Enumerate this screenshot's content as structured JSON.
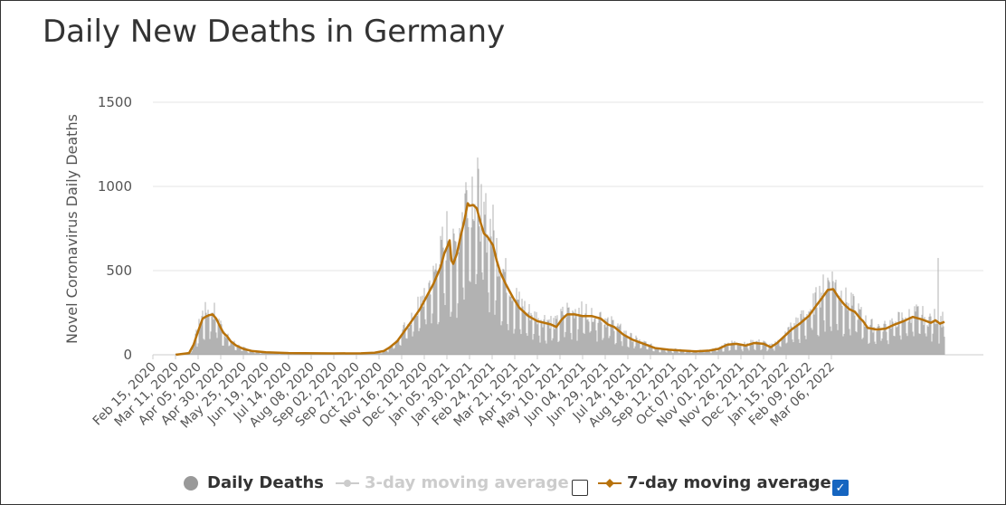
{
  "title": "Daily New Deaths in Germany",
  "chart_data": {
    "type": "bar",
    "title": "Daily New Deaths in Germany",
    "ylabel": "Novel Coronavirus Daily Deaths",
    "xlabel": "",
    "ylim": [
      0,
      1500
    ],
    "yticks": [
      0,
      500,
      1000,
      1500
    ],
    "grid": true,
    "x_tick_labels": [
      "Feb 15, 2020",
      "Mar 11, 2020",
      "Apr 05, 2020",
      "Apr 30, 2020",
      "May 25, 2020",
      "Jun 19, 2020",
      "Jul 14, 2020",
      "Aug 08, 2020",
      "Sep 02, 2020",
      "Sep 27, 2020",
      "Oct 22, 2020",
      "Nov 16, 2020",
      "Dec 11, 2020",
      "Jan 05, 2021",
      "Jan 30, 2021",
      "Feb 24, 2021",
      "Mar 21, 2021",
      "Apr 15, 2021",
      "May 10, 2021",
      "Jun 04, 2021",
      "Jun 29, 2021",
      "Jul 24, 2021",
      "Aug 18, 2021",
      "Sep 12, 2021",
      "Oct 07, 2021",
      "Nov 01, 2021",
      "Nov 26, 2021",
      "Dec 21, 2021",
      "Jan 15, 2022",
      "Feb 09, 2022",
      "Mar 06, 2022"
    ],
    "days_range": [
      0,
      785
    ],
    "series": [
      {
        "name": "7-day moving average",
        "color": "#b8720a",
        "points": [
          [
            25,
            0
          ],
          [
            40,
            10
          ],
          [
            45,
            60
          ],
          [
            50,
            140
          ],
          [
            55,
            215
          ],
          [
            58,
            225
          ],
          [
            62,
            235
          ],
          [
            66,
            240
          ],
          [
            70,
            215
          ],
          [
            74,
            170
          ],
          [
            78,
            130
          ],
          [
            82,
            110
          ],
          [
            86,
            80
          ],
          [
            92,
            55
          ],
          [
            100,
            35
          ],
          [
            110,
            22
          ],
          [
            125,
            15
          ],
          [
            150,
            10
          ],
          [
            200,
            8
          ],
          [
            230,
            9
          ],
          [
            245,
            12
          ],
          [
            255,
            22
          ],
          [
            262,
            45
          ],
          [
            270,
            80
          ],
          [
            278,
            140
          ],
          [
            286,
            200
          ],
          [
            295,
            270
          ],
          [
            302,
            340
          ],
          [
            310,
            420
          ],
          [
            318,
            520
          ],
          [
            322,
            600
          ],
          [
            326,
            650
          ],
          [
            328,
            680
          ],
          [
            330,
            560
          ],
          [
            332,
            540
          ],
          [
            336,
            600
          ],
          [
            340,
            700
          ],
          [
            344,
            790
          ],
          [
            348,
            900
          ],
          [
            350,
            885
          ],
          [
            354,
            890
          ],
          [
            358,
            870
          ],
          [
            362,
            790
          ],
          [
            366,
            720
          ],
          [
            370,
            700
          ],
          [
            376,
            650
          ],
          [
            380,
            560
          ],
          [
            384,
            490
          ],
          [
            390,
            420
          ],
          [
            398,
            340
          ],
          [
            405,
            280
          ],
          [
            415,
            230
          ],
          [
            425,
            200
          ],
          [
            440,
            180
          ],
          [
            446,
            165
          ],
          [
            452,
            210
          ],
          [
            458,
            240
          ],
          [
            466,
            240
          ],
          [
            475,
            230
          ],
          [
            485,
            230
          ],
          [
            495,
            215
          ],
          [
            503,
            180
          ],
          [
            510,
            165
          ],
          [
            520,
            120
          ],
          [
            530,
            90
          ],
          [
            545,
            60
          ],
          [
            555,
            40
          ],
          [
            570,
            30
          ],
          [
            585,
            25
          ],
          [
            600,
            20
          ],
          [
            615,
            25
          ],
          [
            625,
            35
          ],
          [
            635,
            60
          ],
          [
            645,
            65
          ],
          [
            655,
            55
          ],
          [
            665,
            70
          ],
          [
            675,
            65
          ],
          [
            683,
            45
          ],
          [
            690,
            70
          ],
          [
            698,
            110
          ],
          [
            706,
            150
          ],
          [
            715,
            185
          ],
          [
            725,
            230
          ],
          [
            733,
            290
          ],
          [
            740,
            340
          ],
          [
            746,
            385
          ],
          [
            752,
            390
          ],
          [
            758,
            340
          ],
          [
            764,
            300
          ],
          [
            770,
            270
          ],
          [
            776,
            255
          ],
          [
            782,
            215
          ],
          [
            785,
            200
          ],
          [
            790,
            160
          ],
          [
            800,
            150
          ],
          [
            810,
            155
          ],
          [
            820,
            180
          ],
          [
            830,
            200
          ],
          [
            840,
            225
          ],
          [
            850,
            210
          ],
          [
            860,
            190
          ],
          [
            865,
            205
          ],
          [
            870,
            185
          ],
          [
            875,
            195
          ]
        ]
      }
    ],
    "bar_series": {
      "name": "Daily Deaths",
      "color": "#999999",
      "note": "daily bars drawn around the 7-day average"
    },
    "legend": [
      "Daily Deaths",
      "3-day moving average",
      "7-day moving average"
    ]
  },
  "legend": {
    "daily_deaths": "Daily Deaths",
    "three_day": "3-day moving average",
    "seven_day": "7-day moving average",
    "three_day_checked": false,
    "seven_day_checked": true,
    "check_glyph": "✓"
  }
}
